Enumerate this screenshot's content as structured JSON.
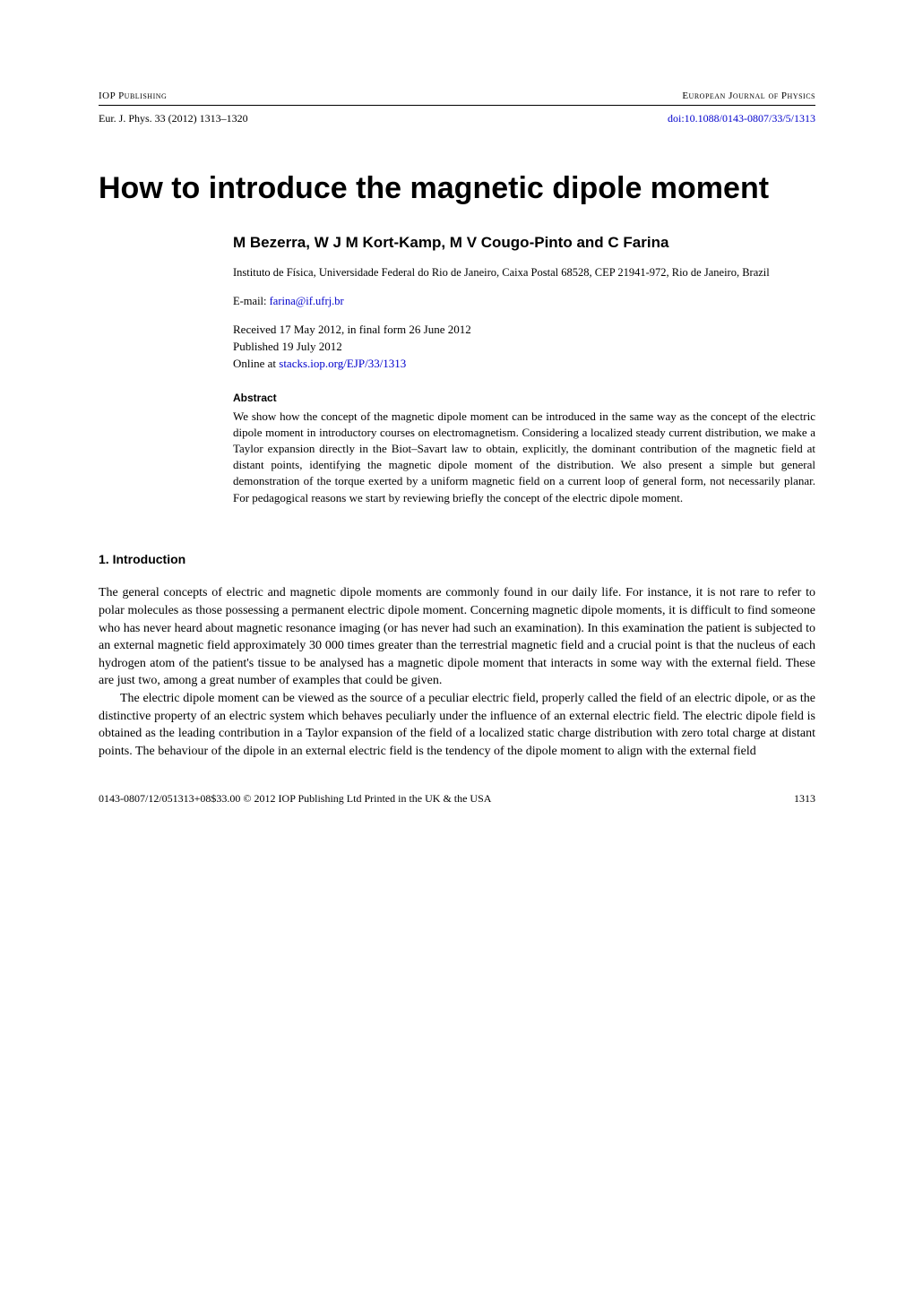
{
  "header": {
    "left": "IOP Publishing",
    "right": "European Journal of Physics"
  },
  "citation": {
    "journal_line": "Eur. J. Phys. 33 (2012) 1313–1320",
    "doi": "doi:10.1088/0143-0807/33/5/1313"
  },
  "title": "How to introduce the magnetic dipole moment",
  "authors": "M Bezerra, W J M Kort-Kamp, M V Cougo-Pinto and C Farina",
  "affiliation": "Instituto de Física, Universidade Federal do Rio de Janeiro, Caixa Postal 68528, CEP 21941-972, Rio de Janeiro, Brazil",
  "email": {
    "label": "E-mail: ",
    "address": "farina@if.ufrj.br"
  },
  "pub": {
    "received": "Received 17 May 2012, in final form 26 June 2012",
    "published": "Published 19 July 2012",
    "online_label": "Online at ",
    "online_url": "stacks.iop.org/EJP/33/1313"
  },
  "abstract": {
    "heading": "Abstract",
    "text": "We show how the concept of the magnetic dipole moment can be introduced in the same way as the concept of the electric dipole moment in introductory courses on electromagnetism. Considering a localized steady current distribution, we make a Taylor expansion directly in the Biot–Savart law to obtain, explicitly, the dominant contribution of the magnetic field at distant points, identifying the magnetic dipole moment of the distribution. We also present a simple but general demonstration of the torque exerted by a uniform magnetic field on a current loop of general form, not necessarily planar. For pedagogical reasons we start by reviewing briefly the concept of the electric dipole moment."
  },
  "section1": {
    "heading": "1. Introduction",
    "para1": "The general concepts of electric and magnetic dipole moments are commonly found in our daily life. For instance, it is not rare to refer to polar molecules as those possessing a permanent electric dipole moment. Concerning magnetic dipole moments, it is difficult to find someone who has never heard about magnetic resonance imaging (or has never had such an examination). In this examination the patient is subjected to an external magnetic field approximately 30 000 times greater than the terrestrial magnetic field and a crucial point is that the nucleus of each hydrogen atom of the patient's tissue to be analysed has a magnetic dipole moment that interacts in some way with the external field. These are just two, among a great number of examples that could be given.",
    "para2": "The electric dipole moment can be viewed as the source of a peculiar electric field, properly called the field of an electric dipole, or as the distinctive property of an electric system which behaves peculiarly under the influence of an external electric field. The electric dipole field is obtained as the leading contribution in a Taylor expansion of the field of a localized static charge distribution with zero total charge at distant points. The behaviour of the dipole in an external electric field is the tendency of the dipole moment to align with the external field"
  },
  "footer": {
    "left": "0143-0807/12/051313+08$33.00   © 2012 IOP Publishing Ltd   Printed in the UK & the USA",
    "pagenum": "1313"
  }
}
